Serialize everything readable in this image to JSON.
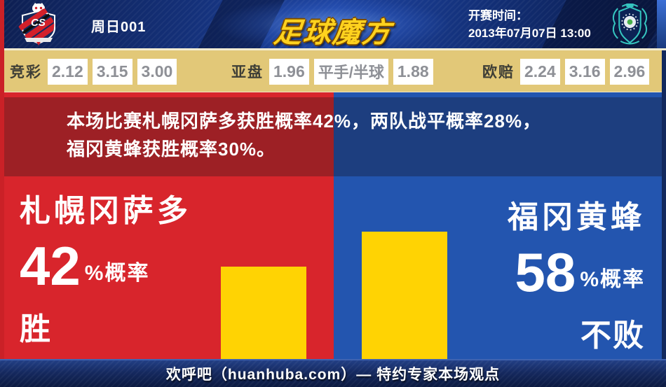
{
  "header": {
    "match_code": "周日001",
    "brand_logo_text": "足球魔方",
    "kickoff_label": "开赛时间：",
    "kickoff_datetime": "2013年07月07日 13:00",
    "home_crest": "consadole-sapporo-crest",
    "away_crest": "avispa-fukuoka-crest"
  },
  "odds_bar": {
    "groups": [
      {
        "label": "竞彩",
        "values": [
          "2.12",
          "3.15",
          "3.00"
        ]
      },
      {
        "label": "亚盘",
        "values": [
          "1.96",
          "平手/半球",
          "1.88"
        ]
      },
      {
        "label": "欧赔",
        "values": [
          "2.24",
          "3.16",
          "2.96"
        ]
      }
    ]
  },
  "summary_banner": {
    "line1": "本场比赛札幌冈萨多获胜概率42%，两队战平概率28%，",
    "line2": "福冈黄蜂获胜概率30%。"
  },
  "home_panel": {
    "team_name": "札幌冈萨多",
    "probability": "42",
    "probability_suffix": "%概率",
    "outcome": "胜",
    "bg_color": "#d8252c",
    "banner_color": "#9d2025"
  },
  "away_panel": {
    "team_name": "福冈黄蜂",
    "probability": "58",
    "probability_suffix": "%概率",
    "outcome": "不败",
    "bg_color": "#2355af",
    "banner_color": "#1d3e7f"
  },
  "footer": {
    "text": "欢呼吧（huanhuba.com）— 特约专家本场观点"
  },
  "chart_data": {
    "type": "bar",
    "categories": [
      "札幌冈萨多 胜",
      "福冈黄蜂 不败"
    ],
    "values": [
      42,
      58
    ],
    "unit": "%",
    "bar_color": "#ffd303",
    "ylim": [
      0,
      100
    ],
    "legend_position": "none",
    "grid": false
  }
}
